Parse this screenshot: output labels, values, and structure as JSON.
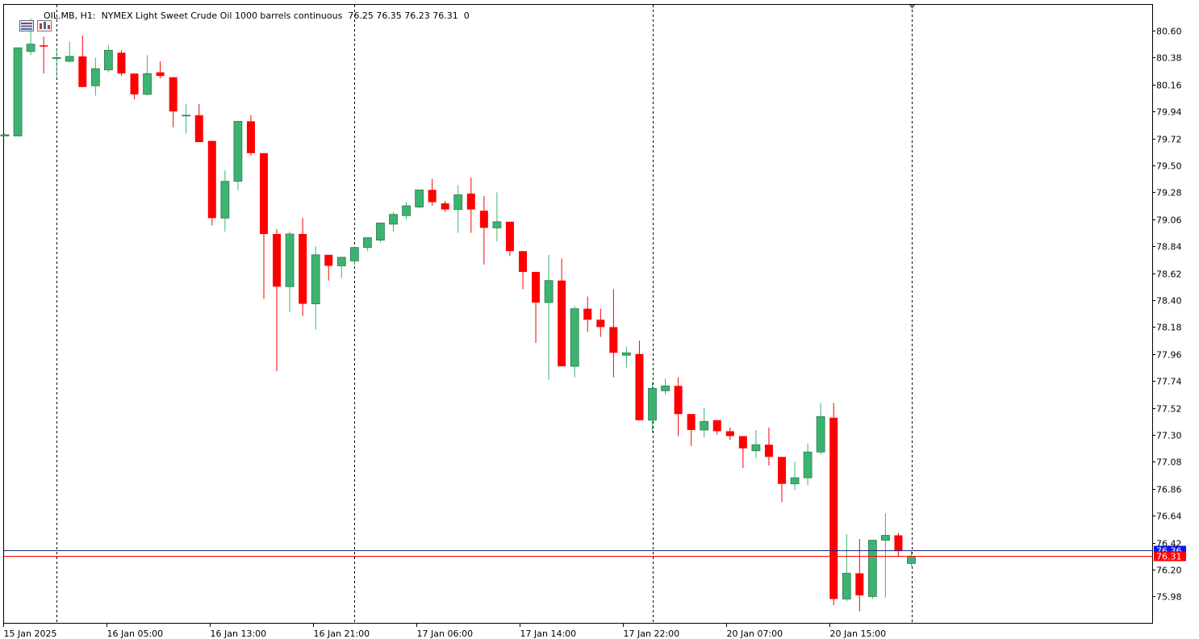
{
  "header": {
    "symbol": "OIL.MB",
    "timeframe": "H1:",
    "description": "NYMEX Light Sweet Crude Oil 1000 barrels continuous",
    "ohlc": "76.25 76.35 76.23 76.31",
    "volume": "0",
    "icons": [
      "table-icon",
      "chart-icon"
    ]
  },
  "colors": {
    "bull": "#3cb371",
    "bear": "#ff0000",
    "ask_line": "#1f2a7a",
    "bid_line": "#ff0000",
    "ask_badge": "#0a14ff",
    "bid_badge": "#ff0000"
  },
  "chart_data": {
    "type": "candlestick",
    "y_ticks": [
      "80.60",
      "80.38",
      "80.16",
      "79.94",
      "79.72",
      "79.50",
      "79.28",
      "79.06",
      "78.84",
      "78.62",
      "78.40",
      "78.18",
      "77.96",
      "77.74",
      "77.52",
      "77.30",
      "77.08",
      "76.86",
      "76.64",
      "76.42",
      "76.20",
      "75.98"
    ],
    "x_labels": [
      "15 Jan 2025",
      "16 Jan 05:00",
      "16 Jan 13:00",
      "16 Jan 21:00",
      "17 Jan 06:00",
      "17 Jan 14:00",
      "17 Jan 22:00",
      "20 Jan 07:00",
      "20 Jan 15:00"
    ],
    "period_separators": [
      4,
      27,
      50,
      70
    ],
    "ask_price": "76.36",
    "bid_price": "76.31",
    "candles": [
      {
        "o": 79.74,
        "h": 79.76,
        "l": 79.74,
        "c": 79.75
      },
      {
        "o": 79.74,
        "h": 80.46,
        "l": 79.74,
        "c": 80.46
      },
      {
        "o": 80.43,
        "h": 80.7,
        "l": 80.4,
        "c": 80.49
      },
      {
        "o": 80.48,
        "h": 80.55,
        "l": 80.25,
        "c": 80.47
      },
      {
        "o": 80.38,
        "h": 80.45,
        "l": 80.22,
        "c": 80.38
      },
      {
        "o": 80.35,
        "h": 80.51,
        "l": 80.34,
        "c": 80.39
      },
      {
        "o": 80.39,
        "h": 80.56,
        "l": 80.14,
        "c": 80.14
      },
      {
        "o": 80.15,
        "h": 80.38,
        "l": 80.07,
        "c": 80.29
      },
      {
        "o": 80.28,
        "h": 80.48,
        "l": 80.26,
        "c": 80.44
      },
      {
        "o": 80.42,
        "h": 80.44,
        "l": 80.23,
        "c": 80.25
      },
      {
        "o": 80.25,
        "h": 80.25,
        "l": 80.04,
        "c": 80.08
      },
      {
        "o": 80.08,
        "h": 80.4,
        "l": 80.07,
        "c": 80.25
      },
      {
        "o": 80.26,
        "h": 80.35,
        "l": 80.21,
        "c": 80.23
      },
      {
        "o": 80.22,
        "h": 80.22,
        "l": 79.81,
        "c": 79.94
      },
      {
        "o": 79.91,
        "h": 80.0,
        "l": 79.76,
        "c": 79.91
      },
      {
        "o": 79.91,
        "h": 80.0,
        "l": 79.69,
        "c": 79.69
      },
      {
        "o": 79.7,
        "h": 79.7,
        "l": 79.01,
        "c": 79.07
      },
      {
        "o": 79.07,
        "h": 79.46,
        "l": 78.96,
        "c": 79.37
      },
      {
        "o": 79.37,
        "h": 79.86,
        "l": 79.3,
        "c": 79.86
      },
      {
        "o": 79.86,
        "h": 79.91,
        "l": 79.58,
        "c": 79.6
      },
      {
        "o": 79.6,
        "h": 79.6,
        "l": 78.41,
        "c": 78.94
      },
      {
        "o": 78.94,
        "h": 78.98,
        "l": 77.82,
        "c": 78.51
      },
      {
        "o": 78.51,
        "h": 78.96,
        "l": 78.3,
        "c": 78.94
      },
      {
        "o": 78.94,
        "h": 79.07,
        "l": 78.27,
        "c": 78.37
      },
      {
        "o": 78.37,
        "h": 78.84,
        "l": 78.16,
        "c": 78.77
      },
      {
        "o": 78.77,
        "h": 78.77,
        "l": 78.56,
        "c": 78.68
      },
      {
        "o": 78.68,
        "h": 78.75,
        "l": 78.58,
        "c": 78.75
      },
      {
        "o": 78.72,
        "h": 78.83,
        "l": 78.69,
        "c": 78.83
      },
      {
        "o": 78.83,
        "h": 78.9,
        "l": 78.8,
        "c": 78.91
      },
      {
        "o": 78.89,
        "h": 79.03,
        "l": 78.87,
        "c": 79.03
      },
      {
        "o": 79.02,
        "h": 79.12,
        "l": 78.96,
        "c": 79.1
      },
      {
        "o": 79.09,
        "h": 79.2,
        "l": 79.06,
        "c": 79.17
      },
      {
        "o": 79.16,
        "h": 79.3,
        "l": 79.15,
        "c": 79.3
      },
      {
        "o": 79.3,
        "h": 79.39,
        "l": 79.17,
        "c": 79.2
      },
      {
        "o": 79.19,
        "h": 79.21,
        "l": 79.12,
        "c": 79.14
      },
      {
        "o": 79.14,
        "h": 79.34,
        "l": 78.95,
        "c": 79.26
      },
      {
        "o": 79.27,
        "h": 79.4,
        "l": 78.95,
        "c": 79.14
      },
      {
        "o": 79.13,
        "h": 79.25,
        "l": 78.69,
        "c": 78.99
      },
      {
        "o": 78.99,
        "h": 79.28,
        "l": 78.88,
        "c": 79.04
      },
      {
        "o": 79.04,
        "h": 79.04,
        "l": 78.76,
        "c": 78.8
      },
      {
        "o": 78.8,
        "h": 78.8,
        "l": 78.49,
        "c": 78.63
      },
      {
        "o": 78.63,
        "h": 78.63,
        "l": 78.05,
        "c": 78.38
      },
      {
        "o": 78.38,
        "h": 78.77,
        "l": 77.75,
        "c": 78.56
      },
      {
        "o": 78.56,
        "h": 78.74,
        "l": 77.86,
        "c": 77.86
      },
      {
        "o": 77.86,
        "h": 78.35,
        "l": 77.77,
        "c": 78.33
      },
      {
        "o": 78.33,
        "h": 78.43,
        "l": 78.14,
        "c": 78.24
      },
      {
        "o": 78.24,
        "h": 78.33,
        "l": 78.1,
        "c": 78.18
      },
      {
        "o": 78.18,
        "h": 78.49,
        "l": 77.77,
        "c": 77.97
      },
      {
        "o": 77.95,
        "h": 78.02,
        "l": 77.85,
        "c": 77.97
      },
      {
        "o": 77.96,
        "h": 78.07,
        "l": 77.42,
        "c": 77.42
      },
      {
        "o": 77.42,
        "h": 77.73,
        "l": 77.32,
        "c": 77.68
      },
      {
        "o": 77.66,
        "h": 77.76,
        "l": 77.63,
        "c": 77.7
      },
      {
        "o": 77.7,
        "h": 77.77,
        "l": 77.29,
        "c": 77.47
      },
      {
        "o": 77.47,
        "h": 77.47,
        "l": 77.21,
        "c": 77.34
      },
      {
        "o": 77.34,
        "h": 77.52,
        "l": 77.28,
        "c": 77.41
      },
      {
        "o": 77.42,
        "h": 77.42,
        "l": 77.3,
        "c": 77.33
      },
      {
        "o": 77.33,
        "h": 77.36,
        "l": 77.26,
        "c": 77.29
      },
      {
        "o": 77.29,
        "h": 77.29,
        "l": 77.03,
        "c": 77.19
      },
      {
        "o": 77.17,
        "h": 77.34,
        "l": 77.11,
        "c": 77.22
      },
      {
        "o": 77.22,
        "h": 77.36,
        "l": 77.05,
        "c": 77.12
      },
      {
        "o": 77.12,
        "h": 77.12,
        "l": 76.75,
        "c": 76.9
      },
      {
        "o": 76.9,
        "h": 77.08,
        "l": 76.85,
        "c": 76.95
      },
      {
        "o": 76.95,
        "h": 77.23,
        "l": 76.89,
        "c": 77.16
      },
      {
        "o": 77.16,
        "h": 77.56,
        "l": 77.14,
        "c": 77.45
      },
      {
        "o": 77.44,
        "h": 77.56,
        "l": 75.91,
        "c": 75.96
      },
      {
        "o": 75.96,
        "h": 76.49,
        "l": 75.94,
        "c": 76.17
      },
      {
        "o": 76.17,
        "h": 76.45,
        "l": 75.86,
        "c": 75.99
      },
      {
        "o": 75.98,
        "h": 76.42,
        "l": 75.96,
        "c": 76.44
      },
      {
        "o": 76.44,
        "h": 76.66,
        "l": 75.97,
        "c": 76.48
      },
      {
        "o": 76.48,
        "h": 76.5,
        "l": 76.31,
        "c": 76.35
      },
      {
        "o": 76.25,
        "h": 76.35,
        "l": 76.23,
        "c": 76.31
      }
    ]
  }
}
